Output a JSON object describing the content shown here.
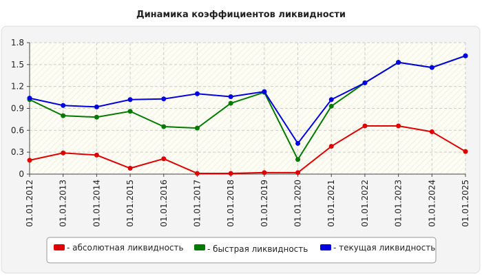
{
  "chart_data": {
    "type": "line",
    "title": "Динамика коэффициентов ликвидности",
    "categories": [
      "01.01.2012",
      "01.01.2013",
      "01.01.2014",
      "01.01.2015",
      "01.01.2016",
      "01.01.2017",
      "01.01.2018",
      "01.01.2019",
      "01.01.2020",
      "01.01.2021",
      "01.01.2022",
      "01.01.2023",
      "01.01.2024",
      "01.01.2025"
    ],
    "series": [
      {
        "name": "- абсолютная ликвидность",
        "color": "#e00000",
        "values": [
          0.19,
          0.29,
          0.26,
          0.08,
          0.21,
          0.01,
          0.01,
          0.02,
          0.02,
          0.38,
          0.66,
          0.66,
          0.58,
          0.31
        ]
      },
      {
        "name": "- быстрая ликвидность",
        "color": "#007a00",
        "values": [
          1.02,
          0.8,
          0.78,
          0.86,
          0.65,
          0.63,
          0.97,
          1.12,
          0.2,
          0.93,
          1.25,
          1.53,
          1.46,
          1.62
        ]
      },
      {
        "name": "- текущая ликвидность",
        "color": "#0000e0",
        "values": [
          1.04,
          0.94,
          0.92,
          1.02,
          1.03,
          1.1,
          1.06,
          1.13,
          0.42,
          1.02,
          1.25,
          1.53,
          1.46,
          1.62
        ]
      }
    ],
    "ylim": [
      0,
      1.8
    ],
    "yticks": [
      0,
      0.3,
      0.6,
      0.9,
      1.2,
      1.5,
      1.8
    ],
    "grid": true
  }
}
